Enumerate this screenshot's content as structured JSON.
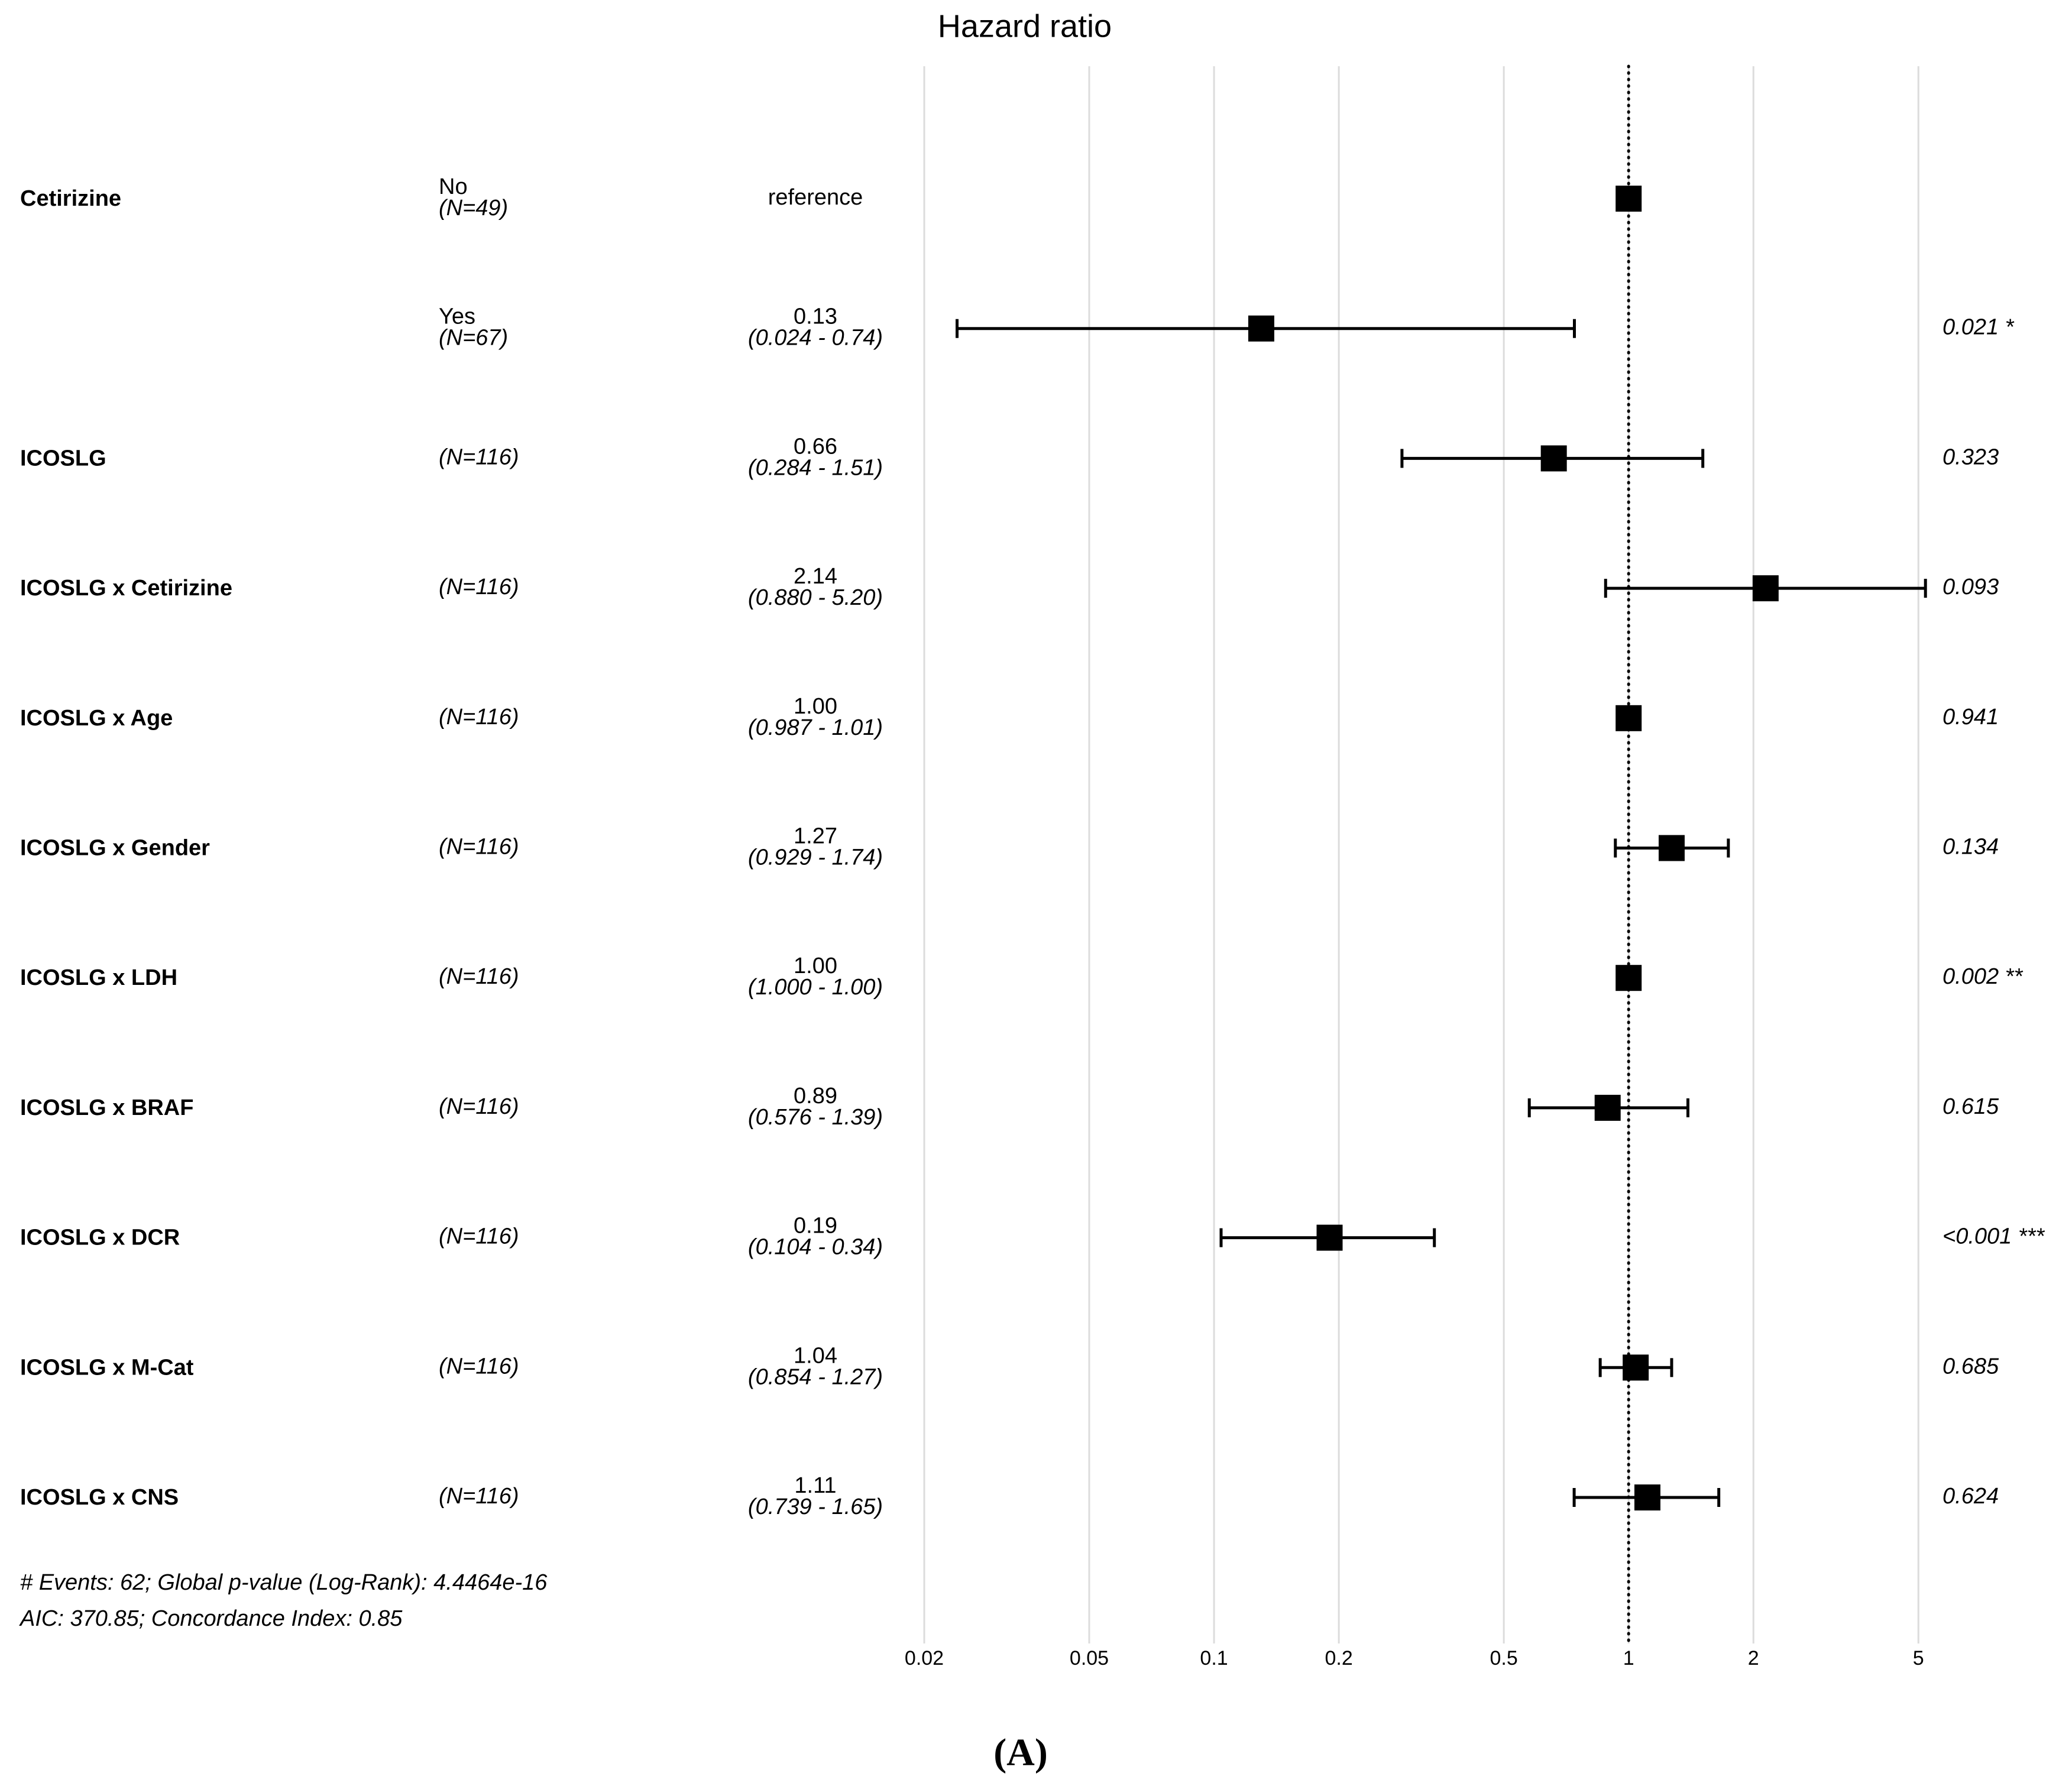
{
  "chart_data": {
    "type": "forest",
    "title": "Hazard ratio",
    "variables": [
      "Cetirizine",
      null,
      "ICOSLG",
      "ICOSLG x Cetirizine",
      "ICOSLG x Age",
      "ICOSLG x Gender",
      "ICOSLG x LDH",
      "ICOSLG x BRAF",
      "ICOSLG x DCR",
      "ICOSLG x M-Cat",
      "ICOSLG x CNS"
    ],
    "levels": [
      "No",
      "Yes",
      null,
      null,
      null,
      null,
      null,
      null,
      null,
      null,
      null
    ],
    "n_labels": [
      "(N=49)",
      "(N=67)",
      "(N=116)",
      "(N=116)",
      "(N=116)",
      "(N=116)",
      "(N=116)",
      "(N=116)",
      "(N=116)",
      "(N=116)",
      "(N=116)"
    ],
    "values": [
      1,
      0.13,
      0.66,
      2.14,
      1.0,
      1.27,
      1.0,
      0.89,
      0.19,
      1.04,
      1.11
    ],
    "value_labels": [
      "reference",
      "0.13",
      "0.66",
      "2.14",
      "1.00",
      "1.27",
      "1.00",
      "0.89",
      "0.19",
      "1.04",
      "1.11"
    ],
    "lower": [
      null,
      0.024,
      0.284,
      0.88,
      0.987,
      0.929,
      1.0,
      0.576,
      0.104,
      0.854,
      0.739
    ],
    "upper": [
      null,
      0.74,
      1.51,
      5.2,
      1.01,
      1.74,
      1.0,
      1.39,
      0.34,
      1.27,
      1.65
    ],
    "ci_labels": [
      null,
      "(0.024 - 0.74)",
      "(0.284 - 1.51)",
      "(0.880 - 5.20)",
      "(0.987 - 1.01)",
      "(0.929 - 1.74)",
      "(1.000 - 1.00)",
      "(0.576 - 1.39)",
      "(0.104 - 0.34)",
      "(0.854 - 1.27)",
      "(0.739 - 1.65)"
    ],
    "p_labels": [
      null,
      "0.021 *",
      "0.323",
      "0.093",
      "0.941",
      "0.134",
      "0.002 **",
      "0.615",
      "<0.001 ***",
      "0.685",
      "0.624"
    ],
    "xscale": "log",
    "xlim": [
      0.02,
      5.3
    ],
    "xticks": [
      0.02,
      0.05,
      0.1,
      0.2,
      0.5,
      1,
      2,
      5
    ],
    "grid": true,
    "reference_line": 1,
    "color": "#000000",
    "footnotes": [
      "# Events: 62; Global p-value (Log-Rank): 4.4464e-16",
      "AIC: 370.85; Concordance Index: 0.85"
    ],
    "caption": "(A)"
  }
}
